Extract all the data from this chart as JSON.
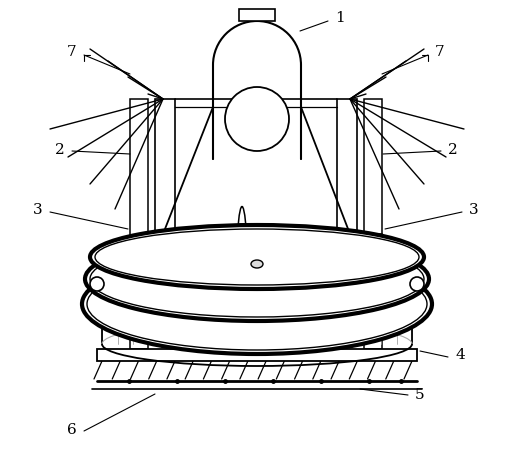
{
  "bg_color": "#ffffff",
  "line_color": "#000000",
  "light_line_color": "#888888",
  "label_color": "#000000",
  "lw_main": 1.3,
  "lw_thin": 0.8,
  "lw_label": 0.7
}
